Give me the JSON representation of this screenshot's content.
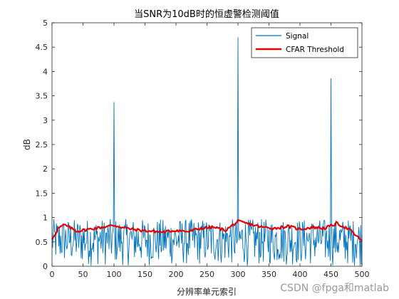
{
  "chart_data": {
    "type": "line",
    "title": "当SNR为10dB时的恒虚警检测阈值",
    "xlabel": "分辨率单元索引",
    "ylabel": "dB",
    "xlim": [
      0,
      500
    ],
    "ylim": [
      0,
      5
    ],
    "xticks": [
      "0",
      "50",
      "100",
      "150",
      "200",
      "250",
      "300",
      "350",
      "400",
      "450",
      "500"
    ],
    "yticks": [
      "0",
      "0.5",
      "1",
      "1.5",
      "2",
      "2.5",
      "3",
      "3.5",
      "4",
      "4.5",
      "5"
    ],
    "grid": false,
    "legend_position": "top-right",
    "series": [
      {
        "name": "Signal",
        "color": "#0072BD",
        "noise_level": [
          0.0,
          0.97
        ],
        "peaks": [
          {
            "x": 100,
            "y": 3.37
          },
          {
            "x": 300,
            "y": 4.7
          },
          {
            "x": 450,
            "y": 3.86
          }
        ]
      },
      {
        "name": "CFAR Threshold",
        "color": "#E60000",
        "x": [
          0,
          10,
          20,
          40,
          60,
          80,
          100,
          120,
          140,
          160,
          180,
          200,
          220,
          240,
          260,
          280,
          300,
          320,
          340,
          360,
          380,
          400,
          420,
          440,
          460,
          480,
          500
        ],
        "values": [
          0.55,
          0.78,
          0.85,
          0.72,
          0.76,
          0.8,
          0.84,
          0.78,
          0.74,
          0.72,
          0.7,
          0.74,
          0.71,
          0.78,
          0.8,
          0.74,
          0.92,
          0.86,
          0.8,
          0.78,
          0.82,
          0.76,
          0.8,
          0.78,
          0.88,
          0.75,
          0.52
        ]
      }
    ]
  },
  "watermark": "CSDN @fpga和matlab"
}
